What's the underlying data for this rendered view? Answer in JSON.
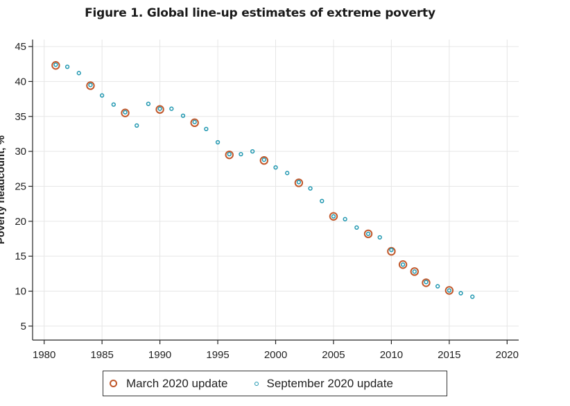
{
  "title": "Figure 1. Global line-up estimates of extreme poverty",
  "colors": {
    "march": "#c0572a",
    "september": "#1f97b0",
    "grid": "#e6e6e6",
    "axis": "#222222"
  },
  "chart_data": {
    "type": "scatter",
    "title": "Figure 1. Global line-up estimates of extreme poverty",
    "xlabel": "",
    "ylabel": "Poverty headcount, %",
    "xlim": [
      1979,
      2021
    ],
    "ylim": [
      3,
      46
    ],
    "xticks": [
      1980,
      1985,
      1990,
      1995,
      2000,
      2005,
      2010,
      2015,
      2020
    ],
    "yticks": [
      5,
      10,
      15,
      20,
      25,
      30,
      35,
      40,
      45
    ],
    "grid": true,
    "legend": "bottom",
    "series": [
      {
        "name": "March 2020 update",
        "marker": "hollow-circle-large",
        "color": "#c0572a",
        "x": [
          1981,
          1984,
          1987,
          1990,
          1993,
          1996,
          1999,
          2002,
          2005,
          2008,
          2010,
          2011,
          2012,
          2013,
          2015
        ],
        "y": [
          42.3,
          39.4,
          35.5,
          36.0,
          34.1,
          29.5,
          28.7,
          25.5,
          20.7,
          18.2,
          15.7,
          13.8,
          12.8,
          11.2,
          10.1
        ]
      },
      {
        "name": "September 2020 update",
        "marker": "hollow-circle-small",
        "color": "#1f97b0",
        "x": [
          1981,
          1982,
          1983,
          1984,
          1985,
          1986,
          1987,
          1988,
          1989,
          1990,
          1991,
          1992,
          1993,
          1994,
          1995,
          1996,
          1997,
          1998,
          1999,
          2000,
          2001,
          2002,
          2003,
          2004,
          2005,
          2006,
          2007,
          2008,
          2009,
          2010,
          2011,
          2012,
          2013,
          2014,
          2015,
          2016,
          2017
        ],
        "y": [
          42.4,
          42.1,
          41.2,
          39.5,
          38.0,
          36.7,
          35.6,
          33.7,
          36.8,
          36.1,
          36.1,
          35.1,
          34.2,
          33.2,
          31.3,
          29.6,
          29.6,
          30.0,
          28.8,
          27.7,
          26.9,
          25.6,
          24.7,
          22.9,
          20.7,
          20.3,
          19.1,
          18.2,
          17.7,
          15.9,
          13.8,
          12.8,
          11.3,
          10.7,
          10.1,
          9.7,
          9.2
        ]
      }
    ]
  },
  "legend": {
    "march_label": "March 2020 update",
    "september_label": "September 2020 update"
  }
}
